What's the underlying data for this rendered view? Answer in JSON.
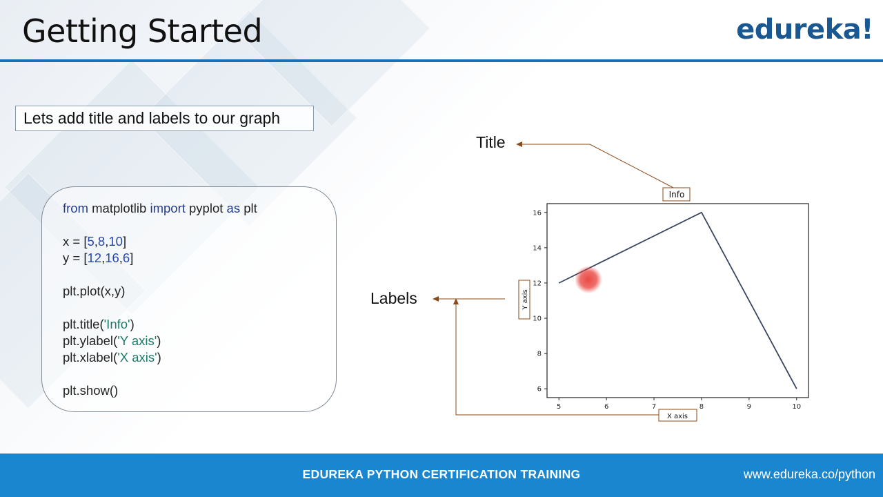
{
  "slide": {
    "title": "Getting Started",
    "logo": "edureka!",
    "subtitle": "Lets add title and labels to our graph"
  },
  "code": {
    "line1": {
      "kw1": "from",
      "mid1": " matplotlib ",
      "kw2": "import",
      "mid2": " pyplot ",
      "kw3": "as",
      "end": " plt"
    },
    "line2": {
      "pre": "x = [",
      "nums": [
        "5",
        "8",
        "10"
      ],
      "post": "]"
    },
    "line3": {
      "pre": "y = [",
      "nums": [
        "12",
        "16",
        "6"
      ],
      "post": "]"
    },
    "line4": "plt.plot(x,y)",
    "line5": {
      "pre": "plt.title(",
      "str": "'Info'",
      "post": ")"
    },
    "line6": {
      "pre": "plt.ylabel(",
      "str": "'Y axis'",
      "post": ")"
    },
    "line7": {
      "pre": "plt.xlabel(",
      "str": "'X axis'",
      "post": ")"
    },
    "line8": "plt.show()"
  },
  "callouts": {
    "title_label": "Title",
    "labels_label": "Labels"
  },
  "chart_data": {
    "type": "line",
    "title": "Info",
    "xlabel": "X axis",
    "ylabel": "Y axis",
    "x": [
      5,
      8,
      10
    ],
    "series": [
      {
        "values": [
          12,
          16,
          6
        ]
      }
    ],
    "xlim": [
      4.75,
      10.25
    ],
    "ylim": [
      5.5,
      16.5
    ],
    "xticks": [
      5,
      6,
      7,
      8,
      9,
      10
    ],
    "yticks": [
      6,
      8,
      10,
      12,
      14,
      16
    ],
    "line_color": "#3a4660"
  },
  "footer": {
    "title": "EDUREKA PYTHON CERTIFICATION TRAINING",
    "url": "www.edureka.co/python"
  },
  "colors": {
    "accent": "#1a6fb5",
    "footer_bg": "#1a86cf",
    "arrow": "#8b4a1a",
    "cursor": "#e8403a"
  }
}
